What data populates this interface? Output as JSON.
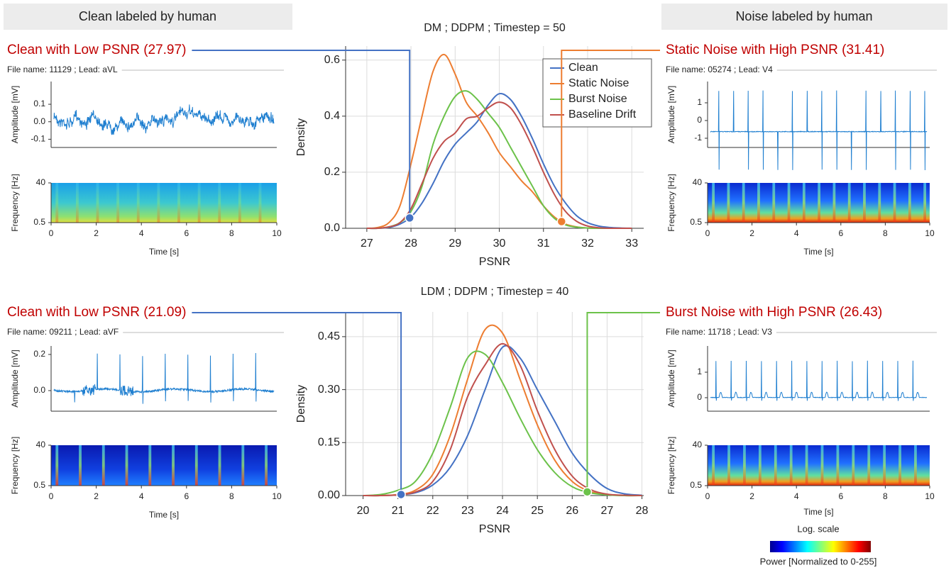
{
  "headers": {
    "left": "Clean labeled by human",
    "right": "Noise labeled by human"
  },
  "chart_data": [
    {
      "type": "line",
      "title": "DM ; DDPM ; Timestep = 50",
      "x_label": "PSNR",
      "y_label": "Density",
      "x": [
        27,
        27.25,
        27.5,
        27.75,
        28,
        28.25,
        28.5,
        28.75,
        29,
        29.25,
        29.5,
        29.75,
        30,
        30.25,
        30.5,
        30.75,
        31,
        31.25,
        31.5,
        31.75,
        32,
        32.25,
        32.5,
        32.75,
        33
      ],
      "series": [
        {
          "name": "Clean",
          "color": "#4472c4",
          "values": [
            0,
            0,
            0.003,
            0.015,
            0.04,
            0.09,
            0.16,
            0.24,
            0.3,
            0.34,
            0.38,
            0.44,
            0.48,
            0.46,
            0.4,
            0.32,
            0.23,
            0.15,
            0.09,
            0.045,
            0.02,
            0.008,
            0.003,
            0.001,
            0
          ]
        },
        {
          "name": "Static Noise",
          "color": "#ed7d31",
          "values": [
            0,
            0.003,
            0.02,
            0.08,
            0.23,
            0.4,
            0.56,
            0.62,
            0.55,
            0.45,
            0.4,
            0.34,
            0.27,
            0.22,
            0.17,
            0.13,
            0.08,
            0.04,
            0.015,
            0.005,
            0.001,
            0,
            0,
            0,
            0
          ]
        },
        {
          "name": "Burst Noise",
          "color": "#6cc24a",
          "values": [
            0,
            0,
            0.005,
            0.02,
            0.06,
            0.15,
            0.3,
            0.4,
            0.47,
            0.49,
            0.46,
            0.41,
            0.36,
            0.29,
            0.22,
            0.15,
            0.08,
            0.035,
            0.012,
            0.004,
            0.001,
            0,
            0,
            0,
            0
          ]
        },
        {
          "name": "Baseline Drift",
          "color": "#c0504d",
          "values": [
            0,
            0,
            0.005,
            0.02,
            0.07,
            0.16,
            0.25,
            0.31,
            0.34,
            0.39,
            0.4,
            0.43,
            0.45,
            0.43,
            0.37,
            0.29,
            0.2,
            0.12,
            0.06,
            0.025,
            0.008,
            0.002,
            0,
            0,
            0
          ]
        }
      ],
      "xlim": [
        26.52,
        33.27
      ],
      "ylim": [
        0,
        0.65
      ],
      "xticks": [
        27,
        28,
        29,
        30,
        31,
        32,
        33
      ],
      "yticks": [
        {
          "value": 0,
          "label": "0.0"
        },
        0.2,
        0.4,
        0.6
      ],
      "grid": true,
      "legend": "upper right"
    },
    {
      "type": "line",
      "title": "LDM ; DDPM ; Timestep = 40",
      "x_label": "PSNR",
      "y_label": "Density",
      "x": [
        20,
        20.5,
        21,
        21.5,
        22,
        22.5,
        23,
        23.5,
        24,
        24.5,
        25,
        25.5,
        26,
        26.5,
        27,
        27.5,
        28
      ],
      "series": [
        {
          "color": "#4472c4",
          "values": [
            0,
            0,
            0.002,
            0.008,
            0.03,
            0.08,
            0.17,
            0.3,
            0.42,
            0.39,
            0.3,
            0.21,
            0.12,
            0.06,
            0.02,
            0.005,
            0.001
          ]
        },
        {
          "color": "#ed7d31",
          "values": [
            0,
            0,
            0.003,
            0.015,
            0.06,
            0.17,
            0.33,
            0.47,
            0.46,
            0.33,
            0.2,
            0.1,
            0.04,
            0.012,
            0.003,
            0,
            0
          ]
        },
        {
          "color": "#6cc24a",
          "values": [
            0,
            0.003,
            0.015,
            0.04,
            0.12,
            0.25,
            0.39,
            0.4,
            0.32,
            0.22,
            0.13,
            0.065,
            0.025,
            0.008,
            0.002,
            0,
            0
          ]
        },
        {
          "color": "#c0504d",
          "values": [
            0,
            0,
            0.002,
            0.01,
            0.04,
            0.13,
            0.28,
            0.37,
            0.43,
            0.37,
            0.24,
            0.13,
            0.055,
            0.018,
            0.004,
            0.001,
            0
          ]
        }
      ],
      "xlim": [
        19.5,
        28.05
      ],
      "ylim": [
        0,
        0.52
      ],
      "xticks": [
        20,
        21,
        22,
        23,
        24,
        25,
        26,
        27,
        28
      ],
      "yticks": [
        {
          "value": 0,
          "label": "0.00"
        },
        0.15,
        {
          "value": 0.3,
          "label": "0.30"
        },
        0.45
      ],
      "grid": true
    }
  ],
  "panels": [
    {
      "label": "Clean with Low PSNR (27.97)",
      "psnr": 27.97,
      "color": "#4472c4",
      "file": "File name: 11129 ; Lead: aVL",
      "signal": {
        "y_label": "Amplitude [mV]",
        "ylim": [
          -0.147,
          0.23
        ],
        "yticks": [
          0.1,
          {
            "value": 0,
            "label": "0.0"
          },
          -0.1
        ]
      },
      "spectrogram": {
        "y_label": "Frequency [Hz]",
        "ylim": [
          0.5,
          40
        ],
        "yticks": [
          40,
          0.5
        ],
        "xlim": [
          0,
          10
        ],
        "xticks": [
          0,
          2,
          4,
          6,
          8,
          10
        ],
        "x_label": "Time [s]"
      }
    },
    {
      "label": "Static Noise with High PSNR (31.41)",
      "psnr": 31.41,
      "color": "#ed7d31",
      "file": "File name: 05274 ; Lead: V4",
      "signal": {
        "y_label": "Amplitude [mV]",
        "ylim": [
          -1.52,
          2.2
        ],
        "yticks": [
          1,
          0,
          -1
        ]
      },
      "spectrogram": {
        "y_label": "Frequency [Hz]",
        "ylim": [
          0.5,
          40
        ],
        "yticks": [
          40,
          0.5
        ],
        "xlim": [
          0,
          10
        ],
        "xticks": [
          0,
          2,
          4,
          6,
          8,
          10
        ],
        "x_label": "Time [s]"
      }
    },
    {
      "label": "Clean with Low PSNR (21.09)",
      "psnr": 21.09,
      "color": "#4472c4",
      "file": "File name: 09211 ; Lead: aVF",
      "signal": {
        "y_label": "Amplitude [mV]",
        "ylim": [
          -0.114,
          0.247
        ],
        "yticks": [
          0.2,
          {
            "value": 0,
            "label": "0.0"
          }
        ]
      },
      "spectrogram": {
        "y_label": "Frequency [Hz]",
        "ylim": [
          0.5,
          40
        ],
        "yticks": [
          40,
          0.5
        ],
        "xlim": [
          0,
          10
        ],
        "xticks": [
          0,
          2,
          4,
          6,
          8,
          10
        ],
        "x_label": "Time [s]"
      }
    },
    {
      "label": "Burst Noise with High PSNR (26.43)",
      "psnr": 26.43,
      "color": "#6cc24a",
      "file": "File name: 11718 ; Lead: V3",
      "signal": {
        "y_label": "Amplitude [mV]",
        "ylim": [
          -0.53,
          2.03
        ],
        "yticks": [
          1,
          0
        ]
      },
      "spectrogram": {
        "y_label": "Frequency [Hz]",
        "ylim": [
          0.5,
          40
        ],
        "yticks": [
          40,
          0.5
        ],
        "xlim": [
          0,
          10
        ],
        "xticks": [
          0,
          2,
          4,
          6,
          8,
          10
        ],
        "x_label": "Time [s]"
      }
    }
  ],
  "colorbar": {
    "title": "Log. scale",
    "label": "Power [Normalized to 0-255]"
  }
}
